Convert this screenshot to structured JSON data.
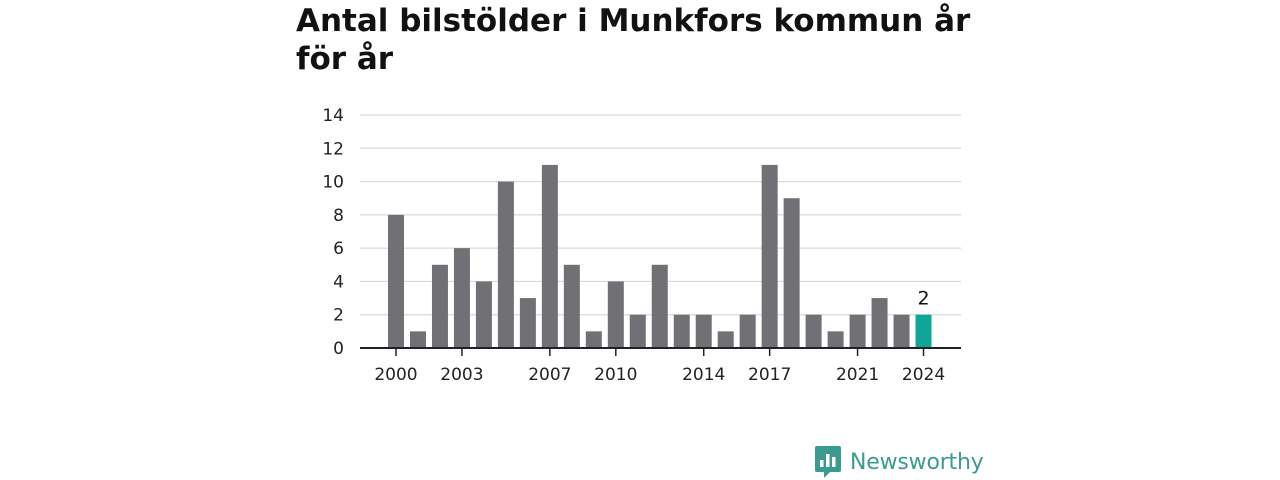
{
  "title": "Antal bilstölder i Munkfors kommun år för år",
  "brand": {
    "name": "Newsworthy",
    "icon": "newsworthy-logo-icon"
  },
  "colors": {
    "bar": "#717075",
    "highlight": "#0fa697",
    "grid": "#d9d9d9",
    "axis": "#222222"
  },
  "chart_data": {
    "type": "bar",
    "title": "Antal bilstölder i Munkfors kommun år för år",
    "xlabel": "",
    "ylabel": "",
    "categories": [
      2000,
      2001,
      2002,
      2003,
      2004,
      2005,
      2006,
      2007,
      2008,
      2009,
      2010,
      2011,
      2012,
      2013,
      2014,
      2015,
      2016,
      2017,
      2018,
      2019,
      2020,
      2021,
      2022,
      2023,
      2024
    ],
    "values": [
      8,
      1,
      5,
      6,
      4,
      10,
      3,
      11,
      5,
      1,
      4,
      2,
      5,
      2,
      2,
      1,
      2,
      11,
      9,
      2,
      1,
      2,
      3,
      2,
      2
    ],
    "ylim": [
      0,
      14
    ],
    "yticks": [
      0,
      2,
      4,
      6,
      8,
      10,
      12,
      14
    ],
    "xtick_labels": [
      2000,
      2003,
      2007,
      2010,
      2014,
      2017,
      2021,
      2024
    ],
    "highlight": {
      "category": 2024,
      "label": "2"
    },
    "grid": true
  }
}
